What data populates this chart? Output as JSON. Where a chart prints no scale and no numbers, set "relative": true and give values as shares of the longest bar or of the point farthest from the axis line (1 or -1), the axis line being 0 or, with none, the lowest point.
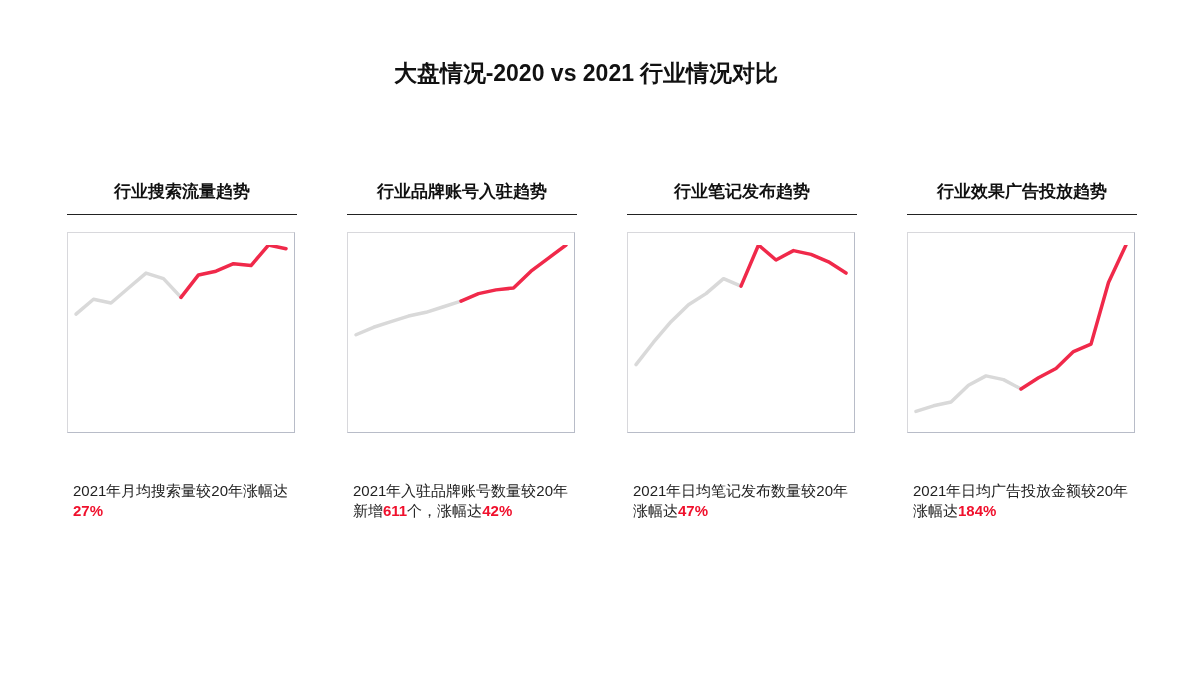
{
  "chart_data": [
    {
      "type": "other",
      "title": "大盘情况-2020 vs 2021 行业情况对比"
    },
    {
      "type": "line",
      "title": "行业搜索流量趋势",
      "relative": true,
      "categories": [
        null,
        null,
        null,
        null,
        null,
        null,
        null,
        null,
        null,
        null,
        null,
        null,
        null
      ],
      "series": [
        {
          "color": "#d9d9d9",
          "values": [
            0.63,
            0.71,
            0.69,
            0.77,
            0.85,
            0.82,
            0.72,
            null,
            null,
            null,
            null,
            null,
            null
          ]
        },
        {
          "color": "#f0294a",
          "values": [
            null,
            null,
            null,
            null,
            null,
            null,
            0.72,
            0.84,
            0.86,
            0.9,
            0.89,
            1,
            0.98
          ]
        }
      ],
      "annotations": [
        "2021年月均搜索量较20年涨幅达27%"
      ]
    },
    {
      "type": "line",
      "title": "行业品牌账号入驻趋势",
      "relative": true,
      "categories": [
        null,
        null,
        null,
        null,
        null,
        null,
        null,
        null,
        null,
        null,
        null,
        null,
        null
      ],
      "series": [
        {
          "color": "#d9d9d9",
          "values": [
            0.52,
            0.56,
            0.59,
            0.62,
            0.64,
            0.67,
            0.7,
            null,
            null,
            null,
            null,
            null,
            null
          ]
        },
        {
          "color": "#f0294a",
          "values": [
            null,
            null,
            null,
            null,
            null,
            null,
            0.7,
            0.74,
            0.76,
            0.77,
            0.86,
            0.93,
            1
          ]
        }
      ],
      "annotations": [
        "2021年入驻品牌账号数量较20年新增611个，涨幅达42%"
      ]
    },
    {
      "type": "line",
      "title": "行业笔记发布趋势",
      "relative": true,
      "categories": [
        null,
        null,
        null,
        null,
        null,
        null,
        null,
        null,
        null,
        null,
        null,
        null,
        null
      ],
      "series": [
        {
          "color": "#d9d9d9",
          "values": [
            0.36,
            0.48,
            0.59,
            0.68,
            0.74,
            0.82,
            0.78,
            null,
            null,
            null,
            null,
            null,
            null
          ]
        },
        {
          "color": "#f0294a",
          "values": [
            null,
            null,
            null,
            null,
            null,
            null,
            0.78,
            1,
            0.92,
            0.97,
            0.95,
            0.91,
            0.85
          ]
        }
      ],
      "annotations": [
        "2021年日均笔记发布数量较20年涨幅达47%"
      ]
    },
    {
      "type": "line",
      "title": "行业效果广告投放趋势",
      "relative": true,
      "categories": [
        null,
        null,
        null,
        null,
        null,
        null,
        null,
        null,
        null,
        null,
        null,
        null,
        null
      ],
      "series": [
        {
          "color": "#d9d9d9",
          "values": [
            0.11,
            0.14,
            0.16,
            0.25,
            0.3,
            0.28,
            0.23,
            null,
            null,
            null,
            null,
            null,
            null
          ]
        },
        {
          "color": "#f0294a",
          "values": [
            null,
            null,
            null,
            null,
            null,
            null,
            0.23,
            0.29,
            0.34,
            0.43,
            0.47,
            0.8,
            1
          ]
        }
      ],
      "annotations": [
        "2021年日均广告投放金额较20年涨幅达184%"
      ]
    }
  ]
}
